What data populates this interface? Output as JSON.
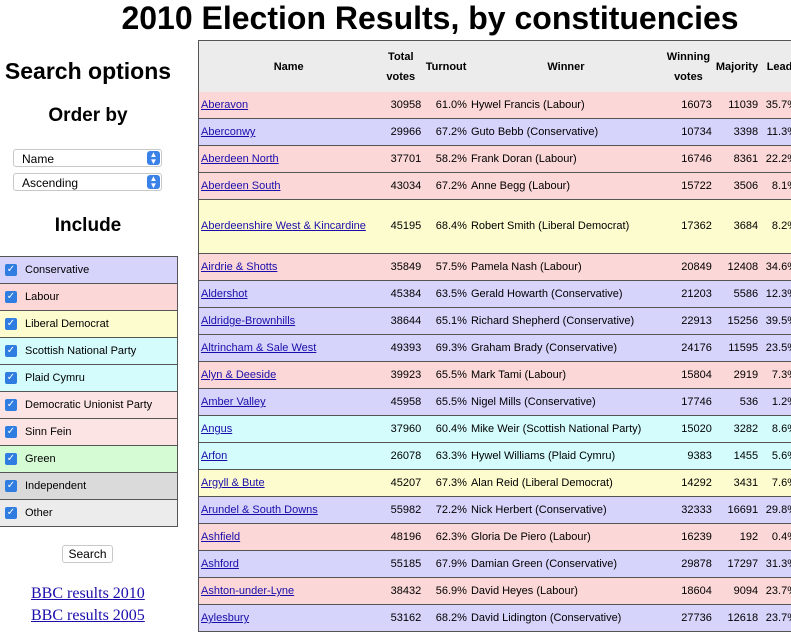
{
  "page_title": "2010 Election Results, by constituencies",
  "sidebar": {
    "search_title": "Search options",
    "order_title": "Order by",
    "order_field": "Name",
    "order_direction": "Ascending",
    "include_title": "Include",
    "parties": [
      {
        "label": "Conservative",
        "color": "#d6d4fb",
        "checked": true
      },
      {
        "label": "Labour",
        "color": "#fbd7d7",
        "checked": true
      },
      {
        "label": "Liberal Democrat",
        "color": "#fdfcce",
        "checked": true
      },
      {
        "label": "Scottish National Party",
        "color": "#d4fcfc",
        "checked": true
      },
      {
        "label": "Plaid Cymru",
        "color": "#d4fcfc",
        "checked": true
      },
      {
        "label": "Democratic Unionist Party",
        "color": "#fde4e4",
        "checked": true
      },
      {
        "label": "Sinn Fein",
        "color": "#fde4e4",
        "checked": true
      },
      {
        "label": "Green",
        "color": "#d4fbd4",
        "checked": true
      },
      {
        "label": "Independent",
        "color": "#dadada",
        "checked": true
      },
      {
        "label": "Other",
        "color": "#ececec",
        "checked": true
      }
    ],
    "search_button": "Search",
    "links": [
      "BBC results 2010",
      "BBC results 2005"
    ]
  },
  "table": {
    "headers": {
      "name": "Name",
      "total_votes_1": "Total",
      "total_votes_2": "votes",
      "turnout": "Turnout",
      "winner": "Winner",
      "winning_votes_1": "Winning",
      "winning_votes_2": "votes",
      "majority": "Majority",
      "lead": "Lead"
    },
    "rows": [
      {
        "name": "Aberavon",
        "total": "30958",
        "turnout": "61.0%",
        "winner": "Hywel Francis (Labour)",
        "winning": "16073",
        "majority": "11039",
        "lead": "35.7%",
        "color": "#fbd7d7"
      },
      {
        "name": "Aberconwy",
        "total": "29966",
        "turnout": "67.2%",
        "winner": "Guto Bebb (Conservative)",
        "winning": "10734",
        "majority": "3398",
        "lead": "11.3%",
        "color": "#d6d4fb"
      },
      {
        "name": "Aberdeen North",
        "total": "37701",
        "turnout": "58.2%",
        "winner": "Frank Doran (Labour)",
        "winning": "16746",
        "majority": "8361",
        "lead": "22.2%",
        "color": "#fbd7d7"
      },
      {
        "name": "Aberdeen South",
        "total": "43034",
        "turnout": "67.2%",
        "winner": "Anne Begg (Labour)",
        "winning": "15722",
        "majority": "3506",
        "lead": "8.1%",
        "color": "#fbd7d7"
      },
      {
        "name": "Aberdeenshire West & Kincardine",
        "total": "45195",
        "turnout": "68.4%",
        "winner": "Robert Smith (Liberal Democrat)",
        "winning": "17362",
        "majority": "3684",
        "lead": "8.2%",
        "color": "#fdfcce",
        "tall": true
      },
      {
        "name": "Airdrie & Shotts",
        "total": "35849",
        "turnout": "57.5%",
        "winner": "Pamela Nash (Labour)",
        "winning": "20849",
        "majority": "12408",
        "lead": "34.6%",
        "color": "#fbd7d7"
      },
      {
        "name": "Aldershot",
        "total": "45384",
        "turnout": "63.5%",
        "winner": "Gerald Howarth (Conservative)",
        "winning": "21203",
        "majority": "5586",
        "lead": "12.3%",
        "color": "#d6d4fb"
      },
      {
        "name": "Aldridge-Brownhills",
        "total": "38644",
        "turnout": "65.1%",
        "winner": "Richard Shepherd (Conservative)",
        "winning": "22913",
        "majority": "15256",
        "lead": "39.5%",
        "color": "#d6d4fb"
      },
      {
        "name": "Altrincham & Sale West",
        "total": "49393",
        "turnout": "69.3%",
        "winner": "Graham Brady (Conservative)",
        "winning": "24176",
        "majority": "11595",
        "lead": "23.5%",
        "color": "#d6d4fb"
      },
      {
        "name": "Alyn & Deeside",
        "total": "39923",
        "turnout": "65.5%",
        "winner": "Mark Tami (Labour)",
        "winning": "15804",
        "majority": "2919",
        "lead": "7.3%",
        "color": "#fbd7d7"
      },
      {
        "name": "Amber Valley",
        "total": "45958",
        "turnout": "65.5%",
        "winner": "Nigel Mills (Conservative)",
        "winning": "17746",
        "majority": "536",
        "lead": "1.2%",
        "color": "#d6d4fb"
      },
      {
        "name": "Angus",
        "total": "37960",
        "turnout": "60.4%",
        "winner": "Mike Weir (Scottish National Party)",
        "winning": "15020",
        "majority": "3282",
        "lead": "8.6%",
        "color": "#d4fcfc"
      },
      {
        "name": "Arfon",
        "total": "26078",
        "turnout": "63.3%",
        "winner": "Hywel Williams (Plaid Cymru)",
        "winning": "9383",
        "majority": "1455",
        "lead": "5.6%",
        "color": "#d4fcfc"
      },
      {
        "name": "Argyll & Bute",
        "total": "45207",
        "turnout": "67.3%",
        "winner": "Alan Reid (Liberal Democrat)",
        "winning": "14292",
        "majority": "3431",
        "lead": "7.6%",
        "color": "#fdfcce"
      },
      {
        "name": "Arundel & South Downs",
        "total": "55982",
        "turnout": "72.2%",
        "winner": "Nick Herbert (Conservative)",
        "winning": "32333",
        "majority": "16691",
        "lead": "29.8%",
        "color": "#d6d4fb"
      },
      {
        "name": "Ashfield",
        "total": "48196",
        "turnout": "62.3%",
        "winner": "Gloria De Piero (Labour)",
        "winning": "16239",
        "majority": "192",
        "lead": "0.4%",
        "color": "#fbd7d7"
      },
      {
        "name": "Ashford",
        "total": "55185",
        "turnout": "67.9%",
        "winner": "Damian Green (Conservative)",
        "winning": "29878",
        "majority": "17297",
        "lead": "31.3%",
        "color": "#d6d4fb"
      },
      {
        "name": "Ashton-under-Lyne",
        "total": "38432",
        "turnout": "56.9%",
        "winner": "David Heyes (Labour)",
        "winning": "18604",
        "majority": "9094",
        "lead": "23.7%",
        "color": "#fbd7d7"
      },
      {
        "name": "Aylesbury",
        "total": "53162",
        "turnout": "68.2%",
        "winner": "David Lidington (Conservative)",
        "winning": "27736",
        "majority": "12618",
        "lead": "23.7%",
        "color": "#d6d4fb"
      }
    ]
  }
}
